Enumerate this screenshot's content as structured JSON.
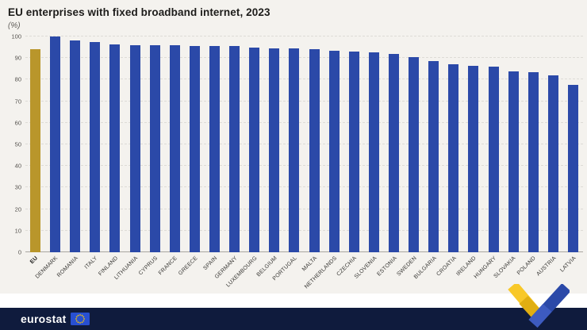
{
  "header": {
    "title": "EU enterprises with fixed broadband internet, 2023",
    "subtitle": "(%)"
  },
  "chart_data": {
    "type": "bar",
    "title": "EU enterprises with fixed broadband internet, 2023",
    "subtitle": "(%)",
    "xlabel": "",
    "ylabel": "",
    "ylim": [
      0,
      100
    ],
    "yticks": [
      0,
      10,
      20,
      30,
      40,
      50,
      60,
      70,
      80,
      90,
      100
    ],
    "grid": "horizontal-dashed",
    "legend": "none",
    "highlight_category": "EU",
    "colors": {
      "highlight": "#B9962B",
      "default": "#2B49A8"
    },
    "categories": [
      "EU",
      "DENMARK",
      "ROMANIA",
      "ITALY",
      "FINLAND",
      "LITHUANIA",
      "CYPRUS",
      "FRANCE",
      "GREECE",
      "SPAIN",
      "GERMANY",
      "LUXEMBOURG",
      "BELGIUM",
      "PORTUGAL",
      "MALTA",
      "NETHERLANDS",
      "CZECHIA",
      "SLOVENIA",
      "ESTONIA",
      "SWEDEN",
      "BULGARIA",
      "CROATIA",
      "IRELAND",
      "HUNGARY",
      "SLOVAKIA",
      "POLAND",
      "AUSTRIA",
      "LATVIA"
    ],
    "values": [
      94,
      100,
      98,
      97.5,
      96.5,
      96,
      96,
      96,
      95.5,
      95.5,
      95.5,
      95,
      94.5,
      94.5,
      94,
      93.5,
      93,
      92.5,
      92,
      90.5,
      88.5,
      87,
      86.5,
      86,
      84,
      83.5,
      82,
      77.5
    ]
  },
  "footer": {
    "logo_text": "eurostat"
  }
}
